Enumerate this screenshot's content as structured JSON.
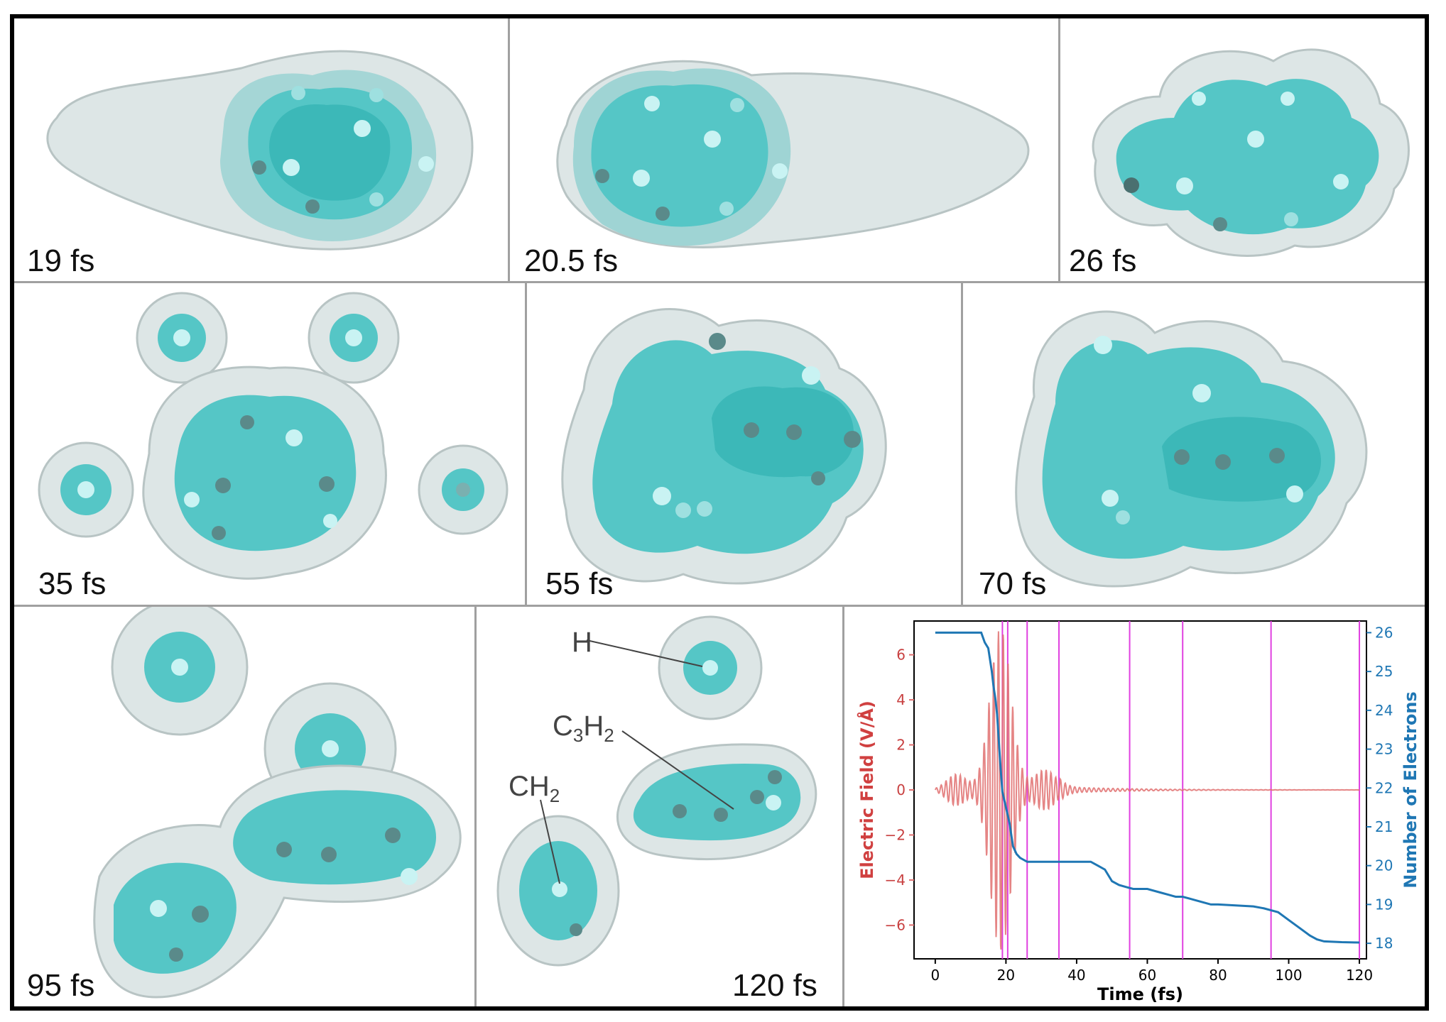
{
  "panels": [
    {
      "label": "19 fs"
    },
    {
      "label": "20.5 fs"
    },
    {
      "label": "26 fs"
    },
    {
      "label": "35 fs"
    },
    {
      "label": "55 fs"
    },
    {
      "label": "70 fs"
    },
    {
      "label": "95 fs"
    },
    {
      "label": "120 fs"
    }
  ],
  "annotations": {
    "h": "H",
    "c3h2_main": "C",
    "c3h2_sub1": "3",
    "c3h2_h": "H",
    "c3h2_sub2": "2",
    "ch2_main": "CH",
    "ch2_sub": "2"
  },
  "colors": {
    "density_outer": "#c8d0d0",
    "density_core": "#3cc8c8",
    "field": "#e07070",
    "electrons": "#1f77b4",
    "markers": "#e040e0"
  },
  "chart_data": {
    "type": "line",
    "xlabel": "Time (fs)",
    "ylabel_left": "Electric Field (V/Å)",
    "ylabel_right": "Number of Electrons",
    "xlim": [
      -6,
      122
    ],
    "ylim_left": [
      -7.5,
      7.5
    ],
    "ylim_right": [
      17.6,
      26.3
    ],
    "x_ticks": [
      0,
      20,
      40,
      60,
      80,
      100,
      120
    ],
    "y_left_ticks": [
      6,
      4,
      2,
      0,
      -2,
      -4,
      -6
    ],
    "y_left_tick_labels": [
      "6",
      "4",
      "2",
      "0",
      "−2",
      "−4",
      "−6"
    ],
    "y_right_ticks": [
      26,
      25,
      24,
      23,
      22,
      21,
      20,
      19,
      18
    ],
    "marker_times": [
      19,
      20.5,
      26,
      35,
      55,
      70,
      95,
      120
    ],
    "series": [
      {
        "axis": "right",
        "x": [
          0,
          13,
          14,
          15,
          15.5,
          16,
          16.5,
          17,
          17.5,
          18,
          18.5,
          19,
          19.5,
          20,
          21,
          22,
          23,
          24,
          25,
          26,
          28,
          34,
          40,
          44,
          46,
          48,
          50,
          52,
          54,
          56,
          60,
          64,
          66,
          68,
          70,
          72,
          74,
          76,
          78,
          80,
          90,
          93,
          95,
          97,
          100,
          103,
          106,
          108,
          110,
          115,
          120
        ],
        "values": [
          26.0,
          26.0,
          25.75,
          25.6,
          25.3,
          25.0,
          24.6,
          24.3,
          23.9,
          23.2,
          22.5,
          21.9,
          21.7,
          21.5,
          21.1,
          20.5,
          20.3,
          20.2,
          20.15,
          20.1,
          20.1,
          20.1,
          20.1,
          20.1,
          20.0,
          19.9,
          19.6,
          19.5,
          19.45,
          19.4,
          19.4,
          19.3,
          19.25,
          19.2,
          19.2,
          19.15,
          19.1,
          19.05,
          19.0,
          19.0,
          18.95,
          18.9,
          18.85,
          18.8,
          18.6,
          18.4,
          18.2,
          18.1,
          18.05,
          18.03,
          18.02
        ]
      },
      {
        "axis": "left",
        "formula": "field envelope: pre-pulse, main pulse ~19 fs, post-pulse, then ~0 to 120 fs"
      }
    ]
  }
}
